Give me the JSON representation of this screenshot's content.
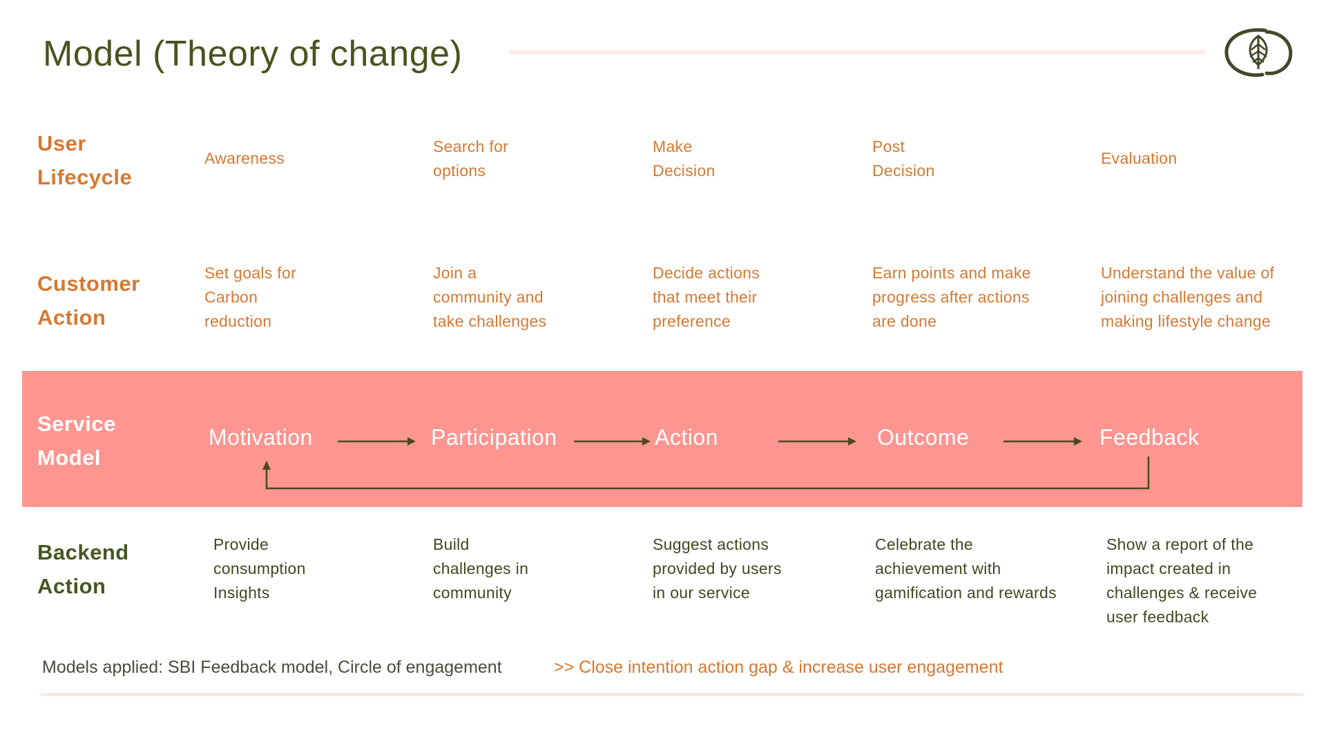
{
  "title": "Model (Theory of change)",
  "colors": {
    "title": "#47541f",
    "accent_orange": "#d67831",
    "olive": "#465722",
    "band": "#fd9590",
    "rule": "#fbe9e2",
    "arrow": "#4a4a1e"
  },
  "rows": {
    "user_lifecycle": {
      "label_line1": "User",
      "label_line2": "Lifecycle",
      "cells": [
        {
          "line1": "Awareness"
        },
        {
          "line1": "Search for",
          "line2": "options"
        },
        {
          "line1": "Make",
          "line2": "Decision"
        },
        {
          "line1": "Post",
          "line2": "Decision"
        },
        {
          "line1": "Evaluation"
        }
      ]
    },
    "customer_action": {
      "label_line1": "Customer",
      "label_line2": "Action",
      "cells": [
        {
          "line1": "Set goals for",
          "line2": "Carbon",
          "line3": "reduction"
        },
        {
          "line1": "Join a",
          "line2": "community and",
          "line3": "take challenges"
        },
        {
          "line1": "Decide actions",
          "line2": "that meet their",
          "line3": "preference"
        },
        {
          "line1": "Earn points and make",
          "line2": "progress after actions",
          "line3": "are done"
        },
        {
          "line1": "Understand the value of",
          "line2": "joining challenges and",
          "line3": "making lifestyle change"
        }
      ]
    },
    "service_model": {
      "label_line1": "Service",
      "label_line2": "Model",
      "stages": [
        "Motivation",
        "Participation",
        "Action",
        "Outcome",
        "Feedback"
      ]
    },
    "backend_action": {
      "label_line1": "Backend",
      "label_line2": "Action",
      "cells": [
        {
          "line1": "Provide",
          "line2": "consumption",
          "line3": "Insights"
        },
        {
          "line1": "Build",
          "line2": "challenges in",
          "line3": "community"
        },
        {
          "line1": "Suggest actions",
          "line2": "provided by users",
          "line3": "in our service"
        },
        {
          "line1": "Celebrate the",
          "line2": "achievement with",
          "line3": "gamification and rewards"
        },
        {
          "line1": "Show a report of the",
          "line2": "impact created in",
          "line3": "challenges & receive",
          "line4": "user feedback"
        }
      ]
    }
  },
  "footer": {
    "models_applied": "Models applied: SBI Feedback model, Circle of engagement",
    "goal": ">> Close intention action gap & increase user engagement"
  },
  "icons": {
    "logo": "leaf-in-circle-logo-icon"
  }
}
